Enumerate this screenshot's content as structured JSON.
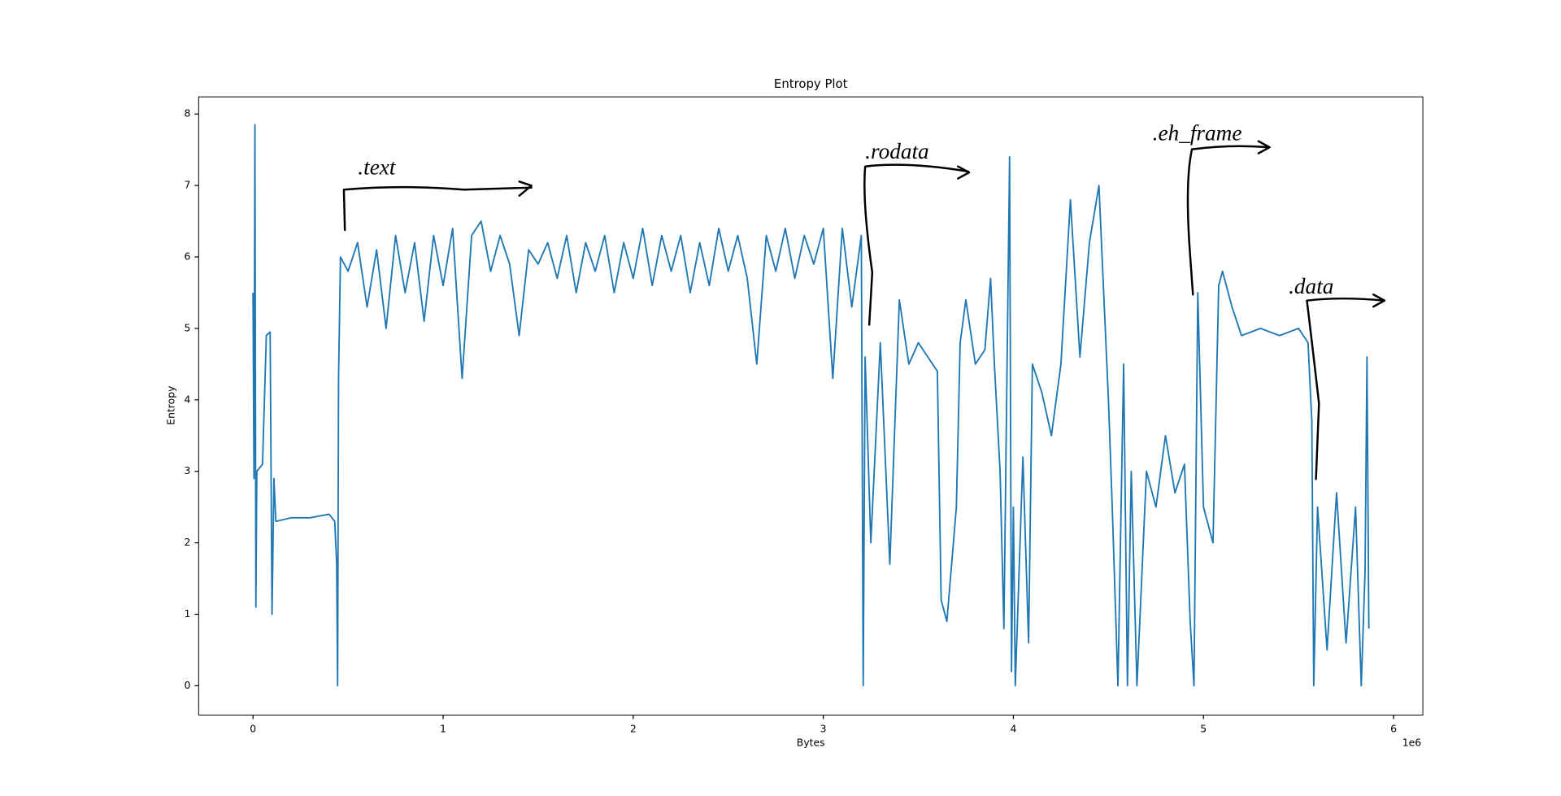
{
  "chart_data": {
    "type": "line",
    "title": "Entropy Plot",
    "x_label": "Bytes",
    "y_label": "Entropy",
    "x_offset_label": "1e6",
    "color": "#1f77b4",
    "x": [
      0,
      5000,
      10000,
      15000,
      20000,
      50000,
      70000,
      90000,
      100000,
      110000,
      120000,
      200000,
      300000,
      400000,
      430000,
      440000,
      445000,
      450000,
      460000,
      500000,
      550000,
      600000,
      650000,
      700000,
      750000,
      800000,
      850000,
      900000,
      950000,
      1000000,
      1050000,
      1100000,
      1150000,
      1200000,
      1250000,
      1300000,
      1350000,
      1400000,
      1450000,
      1500000,
      1550000,
      1600000,
      1650000,
      1700000,
      1750000,
      1800000,
      1850000,
      1900000,
      1950000,
      2000000,
      2050000,
      2100000,
      2150000,
      2200000,
      2250000,
      2300000,
      2350000,
      2400000,
      2450000,
      2500000,
      2550000,
      2600000,
      2650000,
      2700000,
      2750000,
      2800000,
      2850000,
      2900000,
      2950000,
      3000000,
      3050000,
      3100000,
      3150000,
      3200000,
      3210000,
      3220000,
      3250000,
      3300000,
      3350000,
      3400000,
      3450000,
      3500000,
      3550000,
      3600000,
      3620000,
      3650000,
      3700000,
      3720000,
      3750000,
      3800000,
      3850000,
      3880000,
      3900000,
      3930000,
      3950000,
      3980000,
      3990000,
      4000000,
      4010000,
      4050000,
      4080000,
      4100000,
      4150000,
      4200000,
      4250000,
      4300000,
      4350000,
      4400000,
      4450000,
      4500000,
      4520000,
      4550000,
      4580000,
      4600000,
      4620000,
      4650000,
      4700000,
      4750000,
      4800000,
      4850000,
      4900000,
      4930000,
      4950000,
      4970000,
      5000000,
      5050000,
      5080000,
      5100000,
      5150000,
      5200000,
      5300000,
      5400000,
      5500000,
      5550000,
      5570000,
      5580000,
      5600000,
      5650000,
      5700000,
      5750000,
      5800000,
      5830000,
      5850000,
      5860000,
      5870000
    ],
    "values": [
      5.5,
      2.9,
      7.85,
      1.1,
      3.0,
      3.1,
      4.9,
      4.95,
      1.0,
      2.9,
      2.3,
      2.35,
      2.35,
      2.4,
      2.3,
      1.7,
      0,
      4.3,
      6.0,
      5.8,
      6.2,
      5.3,
      6.1,
      5.0,
      6.3,
      5.5,
      6.2,
      5.1,
      6.3,
      5.6,
      6.4,
      4.3,
      6.3,
      6.5,
      5.8,
      6.3,
      5.9,
      4.9,
      6.1,
      5.9,
      6.2,
      5.7,
      6.3,
      5.5,
      6.2,
      5.8,
      6.3,
      5.5,
      6.2,
      5.7,
      6.4,
      5.6,
      6.3,
      5.8,
      6.3,
      5.5,
      6.2,
      5.6,
      6.4,
      5.8,
      6.3,
      5.7,
      4.5,
      6.3,
      5.8,
      6.4,
      5.7,
      6.3,
      5.9,
      6.4,
      4.3,
      6.4,
      5.3,
      6.3,
      0,
      4.6,
      2.0,
      4.8,
      1.7,
      5.4,
      4.5,
      4.8,
      4.6,
      4.4,
      1.2,
      0.9,
      2.5,
      4.8,
      5.4,
      4.5,
      4.7,
      5.7,
      4.5,
      3.0,
      0.8,
      7.4,
      0.2,
      2.5,
      0,
      3.2,
      0.6,
      4.5,
      4.1,
      3.5,
      4.5,
      6.8,
      4.6,
      6.2,
      7.0,
      4.0,
      2.5,
      0,
      4.5,
      0,
      3.0,
      0,
      3.0,
      2.5,
      3.5,
      2.7,
      3.1,
      0.9,
      0,
      5.5,
      2.5,
      2.0,
      5.6,
      5.8,
      5.3,
      4.9,
      5.0,
      4.9,
      5.0,
      4.8,
      3.7,
      0,
      2.5,
      0.5,
      2.7,
      0.6,
      2.5,
      0,
      1.6,
      4.6,
      0.8
    ],
    "xlim": [
      -286000,
      6154000
    ],
    "xticks": [
      {
        "value": 0,
        "label": "0"
      },
      {
        "value": 1000000,
        "label": "1"
      },
      {
        "value": 2000000,
        "label": "2"
      },
      {
        "value": 3000000,
        "label": "3"
      },
      {
        "value": 4000000,
        "label": "4"
      },
      {
        "value": 5000000,
        "label": "5"
      },
      {
        "value": 6000000,
        "label": "6"
      }
    ],
    "ylim": [
      -0.41,
      8.24
    ],
    "yticks": [
      0,
      1,
      2,
      3,
      4,
      5,
      6,
      7,
      8
    ],
    "annotations": [
      {
        "text": ".text"
      },
      {
        "text": ".rodata"
      },
      {
        "text": ".eh_frame"
      },
      {
        "text": ".data"
      }
    ]
  }
}
